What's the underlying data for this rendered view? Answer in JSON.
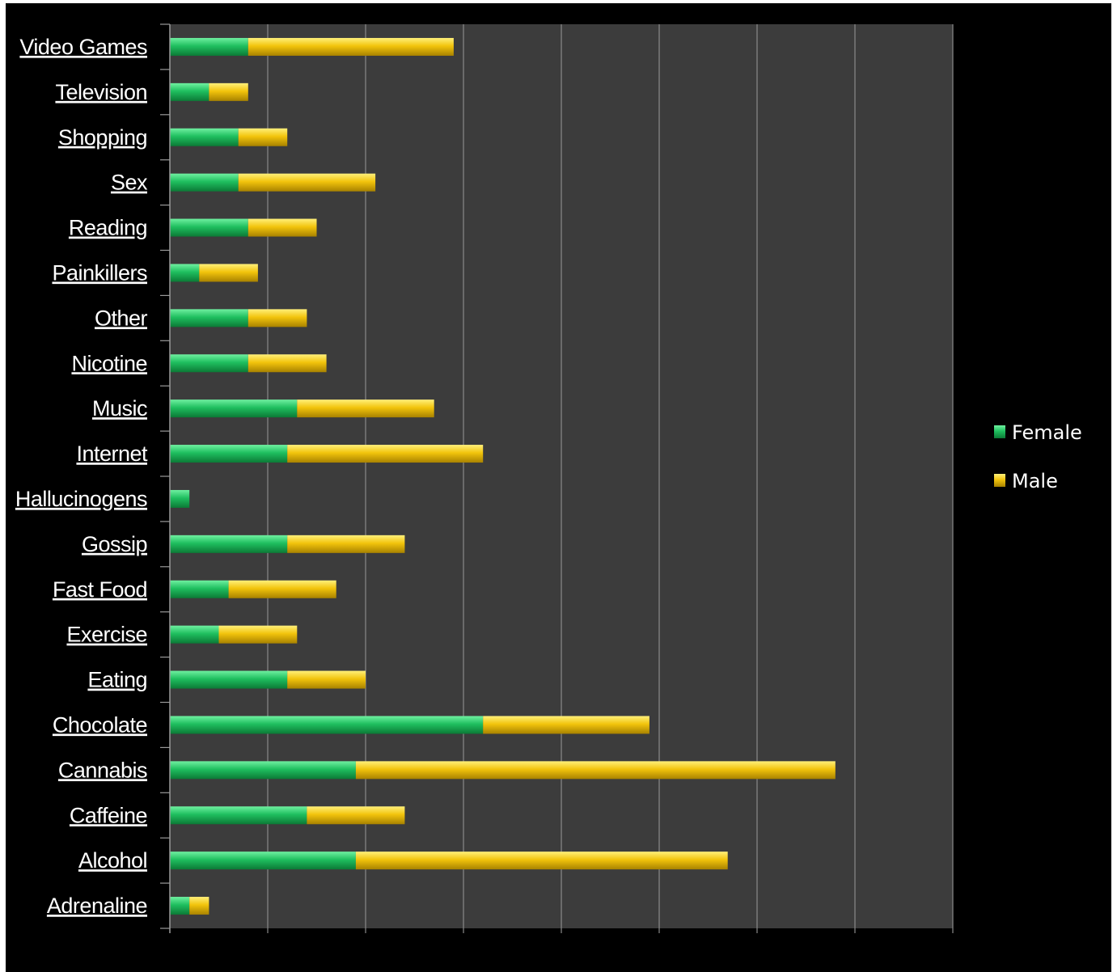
{
  "chart_data": {
    "type": "bar",
    "orientation": "horizontal",
    "stacked": true,
    "categories": [
      "Video Games",
      "Television",
      "Shopping",
      "Sex",
      "Reading",
      "Painkillers",
      "Other",
      "Nicotine",
      "Music",
      "Internet",
      "Hallucinogens",
      "Gossip",
      "Fast Food",
      "Exercise",
      "Eating",
      "Chocolate",
      "Cannabis",
      "Caffeine",
      "Alcohol",
      "Adrenaline"
    ],
    "series": [
      {
        "name": "Female",
        "color": "#1fbf5f",
        "values": [
          0.8,
          0.4,
          0.7,
          0.7,
          0.8,
          0.3,
          0.8,
          0.8,
          1.3,
          1.2,
          0.2,
          1.2,
          0.6,
          0.5,
          1.2,
          3.2,
          1.9,
          1.4,
          1.9,
          0.2
        ]
      },
      {
        "name": "Male",
        "color": "#f2c40c",
        "values": [
          2.1,
          0.4,
          0.5,
          1.4,
          0.7,
          0.6,
          0.6,
          0.8,
          1.4,
          2.0,
          0.0,
          1.2,
          1.1,
          0.8,
          0.8,
          1.7,
          4.9,
          1.0,
          3.8,
          0.2
        ]
      }
    ],
    "xlim": [
      0,
      8
    ],
    "grid": true,
    "legend": "right",
    "title": "",
    "xlabel": "",
    "ylabel": ""
  },
  "colors": {
    "background": "#000000",
    "plot_area": "#3c3c3c",
    "gridline": "#8a8a8a",
    "label_text": "#ffffff"
  }
}
